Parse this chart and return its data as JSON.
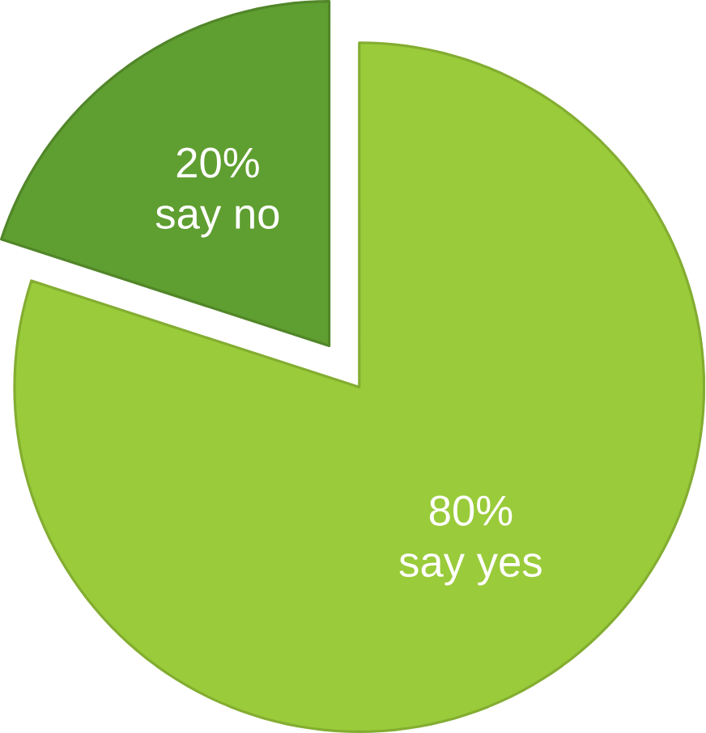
{
  "chart_data": {
    "type": "pie",
    "categories": [
      "say yes",
      "say no"
    ],
    "values": [
      80,
      20
    ],
    "value_labels": [
      "80%",
      "20%"
    ],
    "colors": [
      "#9acb3a",
      "#5f9e30"
    ]
  }
}
